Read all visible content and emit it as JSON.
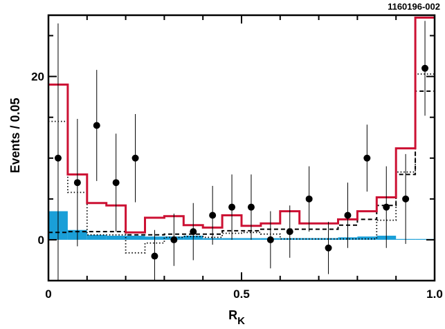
{
  "figure_id": "1160196-002",
  "chart_data": {
    "type": "histogram",
    "xlabel": "R",
    "xlabel_subscript": "K",
    "ylabel": "Events / 0.05",
    "xlim": [
      0,
      1.0
    ],
    "ylim": [
      -5,
      27.5
    ],
    "x_ticks": [
      {
        "value": 0,
        "label": "0"
      },
      {
        "value": 0.5,
        "label": "0.5"
      },
      {
        "value": 1.0,
        "label": "1.0"
      }
    ],
    "y_ticks": [
      {
        "value": 0,
        "label": "0"
      },
      {
        "value": 20,
        "label": "20"
      }
    ],
    "bin_edges": [
      0,
      0.05,
      0.1,
      0.15,
      0.2,
      0.25,
      0.3,
      0.35,
      0.4,
      0.45,
      0.5,
      0.55,
      0.6,
      0.65,
      0.7,
      0.75,
      0.8,
      0.85,
      0.9,
      0.95,
      1.0
    ],
    "series": [
      {
        "style": "filled-histogram",
        "color": "#1a9fd8",
        "values": [
          3.5,
          1.2,
          0.6,
          0.5,
          0.5,
          0.4,
          0.4,
          0.5,
          0.2,
          0.2,
          0.2,
          0.2,
          0.2,
          0.2,
          0.2,
          0.3,
          0.4,
          0.5,
          0.1,
          0.1
        ]
      },
      {
        "style": "dotted-histogram",
        "color": "#000000",
        "values": [
          14.5,
          5.8,
          0.6,
          0.6,
          -1.6,
          -0.4,
          0.3,
          0.4,
          0.3,
          0.8,
          0.9,
          0.7,
          0.1,
          0.1,
          0.1,
          0.1,
          0.1,
          2.4,
          8.3,
          20.3
        ]
      },
      {
        "style": "dashed-histogram",
        "color": "#000000",
        "values": [
          0.9,
          1.0,
          1.0,
          1.0,
          0.6,
          0.6,
          0.7,
          0.7,
          0.7,
          1.1,
          1.1,
          1.3,
          1.3,
          1.3,
          1.3,
          1.8,
          2.5,
          4.2,
          8.0,
          18.2
        ]
      },
      {
        "style": "solid-histogram",
        "color": "#cc1133",
        "values": [
          19.0,
          8.0,
          4.5,
          4.2,
          0.9,
          2.7,
          2.9,
          1.8,
          1.5,
          3.0,
          1.7,
          2.0,
          3.5,
          2.0,
          2.0,
          2.5,
          3.5,
          5.2,
          11.2,
          27.2
        ]
      },
      {
        "style": "points-with-errors",
        "color": "#000000",
        "x": [
          0.025,
          0.075,
          0.125,
          0.175,
          0.225,
          0.275,
          0.325,
          0.375,
          0.425,
          0.475,
          0.525,
          0.575,
          0.625,
          0.675,
          0.725,
          0.775,
          0.825,
          0.875,
          0.925,
          0.975
        ],
        "y": [
          10,
          7,
          14,
          7,
          10,
          -2,
          0,
          1,
          3,
          4,
          4,
          0,
          1,
          5,
          -1,
          3,
          10,
          4,
          5,
          21
        ],
        "err": [
          16.5,
          7.8,
          6.8,
          6.0,
          5.4,
          3.2,
          3.2,
          3.5,
          3.6,
          4.0,
          4.0,
          3.5,
          3.2,
          4.0,
          3.2,
          4.0,
          4.1,
          5.0,
          5.5,
          5.8
        ]
      }
    ]
  }
}
